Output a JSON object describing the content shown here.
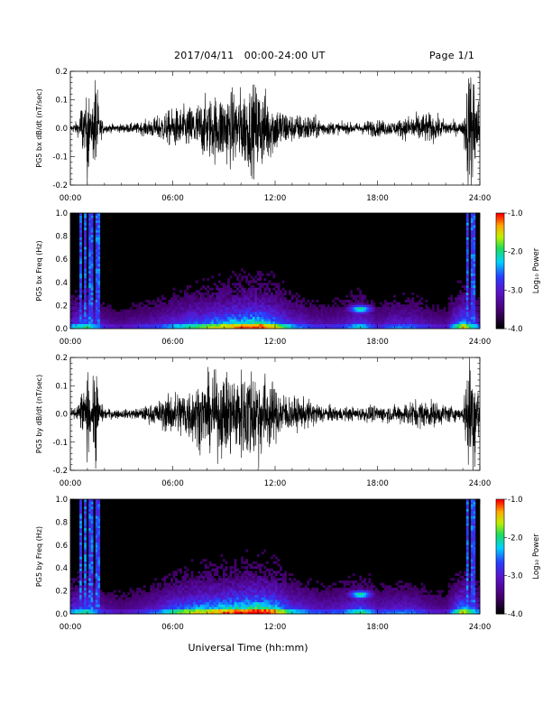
{
  "header": {
    "title": "2017/04/11   00:00-24:00 UT",
    "page": "Page 1/1"
  },
  "xaxis": {
    "label": "Universal Time (hh:mm)",
    "tick_labels": [
      "00:00",
      "06:00",
      "12:00",
      "18:00",
      "24:00"
    ]
  },
  "colors": {
    "trace": "#000000",
    "background": "#000000",
    "colorbar": [
      "#000000",
      "#5a0a8c",
      "#3a3aff",
      "#00d8ff",
      "#20e060",
      "#c8f000",
      "#ffd000",
      "#ff5000",
      "#ff0000"
    ]
  },
  "chart_data": [
    {
      "type": "line",
      "panel": "bx-waveform",
      "ylabel": "PG5 bx dB/dt (nT/sec)",
      "ylim": [
        -0.2,
        0.2
      ],
      "y_tick_labels": [
        "-0.2",
        "-0.1",
        "0.0",
        "0.1",
        "0.2"
      ],
      "x_hours": [
        0,
        0.5,
        0.7,
        0.9,
        1.0,
        1.2,
        1.5,
        1.7,
        2,
        3,
        4,
        5,
        6,
        7,
        8,
        9,
        10,
        10.5,
        11,
        11.5,
        12,
        13,
        14,
        15,
        16,
        17,
        17.5,
        18,
        19,
        20,
        21,
        22,
        23,
        23.3,
        23.6,
        24
      ],
      "amplitude": [
        0.01,
        0.03,
        0.12,
        0.05,
        0.22,
        0.04,
        0.22,
        0.05,
        0.015,
        0.015,
        0.02,
        0.04,
        0.07,
        0.08,
        0.11,
        0.13,
        0.14,
        0.15,
        0.16,
        0.13,
        0.09,
        0.05,
        0.05,
        0.025,
        0.02,
        0.02,
        0.03,
        0.03,
        0.025,
        0.05,
        0.055,
        0.03,
        0.02,
        0.22,
        0.22,
        0.08
      ]
    },
    {
      "type": "heatmap",
      "panel": "bx-spectrogram",
      "ylabel": "PG5 bx Freq (Hz)",
      "ylim": [
        0,
        1.0
      ],
      "y_tick_labels": [
        "0.0",
        "0.2",
        "0.4",
        "0.6",
        "0.8",
        "1.0"
      ],
      "colorbar_label": "Log₁₀ Power",
      "colorbar_range": [
        -4.0,
        -1.0
      ],
      "colorbar_tick_labels": [
        "-4.0",
        "-3.0",
        "-2.0",
        "-1.0"
      ],
      "x_hours": [
        0,
        1,
        2,
        3,
        4,
        5,
        6,
        7,
        8,
        9,
        10,
        11,
        12,
        13,
        14,
        15,
        16,
        17,
        18,
        19,
        20,
        21,
        22,
        23,
        24
      ],
      "activity": [
        0.45,
        0.55,
        0.3,
        0.25,
        0.3,
        0.35,
        0.45,
        0.55,
        0.6,
        0.7,
        0.75,
        0.8,
        0.65,
        0.45,
        0.35,
        0.3,
        0.35,
        0.5,
        0.3,
        0.4,
        0.4,
        0.3,
        0.25,
        0.7,
        0.4
      ],
      "vertical_stripes_hours": [
        0.6,
        0.9,
        1.2,
        1.5,
        1.7,
        23.3,
        23.6
      ],
      "blob": {
        "hour": 17,
        "freq_hz": 0.17
      }
    },
    {
      "type": "line",
      "panel": "by-waveform",
      "ylabel": "PG5 by dB/dt (nT/sec)",
      "ylim": [
        -0.2,
        0.2
      ],
      "y_tick_labels": [
        "-0.2",
        "-0.1",
        "0.0",
        "0.1",
        "0.2"
      ],
      "x_hours": [
        0,
        0.5,
        0.7,
        0.9,
        1.0,
        1.2,
        1.5,
        1.7,
        2,
        3,
        4,
        5,
        6,
        7,
        8,
        9,
        10,
        10.5,
        11,
        11.5,
        12,
        13,
        14,
        15,
        16,
        17,
        17.5,
        18,
        19,
        20,
        21,
        22,
        23,
        23.3,
        23.6,
        24
      ],
      "amplitude": [
        0.01,
        0.04,
        0.1,
        0.05,
        0.18,
        0.05,
        0.2,
        0.05,
        0.02,
        0.015,
        0.02,
        0.04,
        0.08,
        0.1,
        0.13,
        0.15,
        0.16,
        0.18,
        0.17,
        0.14,
        0.1,
        0.06,
        0.05,
        0.03,
        0.025,
        0.025,
        0.03,
        0.03,
        0.03,
        0.05,
        0.05,
        0.035,
        0.02,
        0.22,
        0.22,
        0.09
      ]
    },
    {
      "type": "heatmap",
      "panel": "by-spectrogram",
      "ylabel": "PG5 by Freq (Hz)",
      "ylim": [
        0,
        1.0
      ],
      "y_tick_labels": [
        "0.0",
        "0.2",
        "0.4",
        "0.6",
        "0.8",
        "1.0"
      ],
      "colorbar_label": "Log₁₀ Power",
      "colorbar_range": [
        -4.0,
        -1.0
      ],
      "colorbar_tick_labels": [
        "-4.0",
        "-3.0",
        "-2.0",
        "-1.0"
      ],
      "x_hours": [
        0,
        1,
        2,
        3,
        4,
        5,
        6,
        7,
        8,
        9,
        10,
        11,
        12,
        13,
        14,
        15,
        16,
        17,
        18,
        19,
        20,
        21,
        22,
        23,
        24
      ],
      "activity": [
        0.45,
        0.55,
        0.3,
        0.25,
        0.3,
        0.4,
        0.55,
        0.65,
        0.7,
        0.75,
        0.8,
        0.85,
        0.75,
        0.5,
        0.4,
        0.35,
        0.4,
        0.55,
        0.35,
        0.4,
        0.4,
        0.3,
        0.25,
        0.7,
        0.4
      ],
      "vertical_stripes_hours": [
        0.6,
        0.9,
        1.2,
        1.5,
        1.7,
        23.3,
        23.6
      ],
      "blob": {
        "hour": 17,
        "freq_hz": 0.17
      }
    }
  ]
}
